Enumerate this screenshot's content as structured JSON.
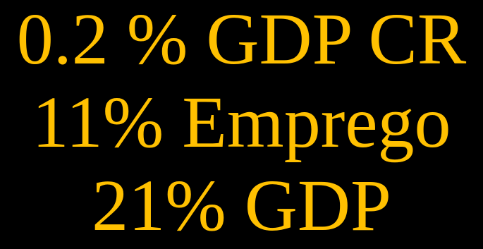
{
  "colors": {
    "background": "#000000",
    "text": "#FFC000"
  },
  "lines": [
    "0.2 % GDP CR",
    "11% Emprego",
    "21% GDP"
  ]
}
